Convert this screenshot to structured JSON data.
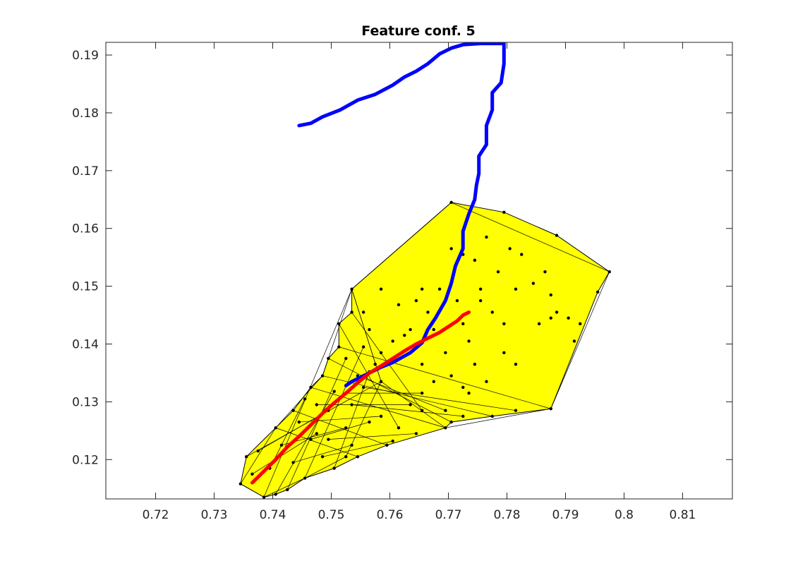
{
  "chart_data": {
    "type": "line",
    "title": "Feature conf. 5",
    "xlabel": "",
    "ylabel": "",
    "xlim": [
      0.7115,
      0.8185
    ],
    "ylim": [
      0.1132,
      0.1922
    ],
    "x_ticks": [
      0.72,
      0.73,
      0.74,
      0.75,
      0.76,
      0.77,
      0.78,
      0.79,
      0.8,
      0.81
    ],
    "x_tick_labels": [
      "0.72",
      "0.73",
      "0.74",
      "0.75",
      "0.76",
      "0.77",
      "0.78",
      "0.79",
      "0.8",
      "0.81"
    ],
    "y_ticks": [
      0.12,
      0.13,
      0.14,
      0.15,
      0.16,
      0.17,
      0.18,
      0.19
    ],
    "y_tick_labels": [
      "0.12",
      "0.13",
      "0.14",
      "0.15",
      "0.16",
      "0.17",
      "0.18",
      "0.19"
    ],
    "grid": false,
    "colors": {
      "background": "#ffffff",
      "region_fill": "#ffff00",
      "edges": "#000000",
      "points": "#000000",
      "blue_series": "#0000ff",
      "red_series": "#ff0000"
    },
    "region": {
      "fill": "#ffff00",
      "hull": [
        [
          0.7345,
          0.1158
        ],
        [
          0.7355,
          0.1205
        ],
        [
          0.7405,
          0.1255
        ],
        [
          0.7435,
          0.1285
        ],
        [
          0.7465,
          0.1325
        ],
        [
          0.7485,
          0.1345
        ],
        [
          0.7495,
          0.1375
        ],
        [
          0.7513,
          0.1395
        ],
        [
          0.7513,
          0.1435
        ],
        [
          0.7535,
          0.1455
        ],
        [
          0.7535,
          0.1495
        ],
        [
          0.7705,
          0.1645
        ],
        [
          0.7795,
          0.1628
        ],
        [
          0.7885,
          0.1588
        ],
        [
          0.7975,
          0.1525
        ],
        [
          0.7955,
          0.149
        ],
        [
          0.7875,
          0.1288
        ],
        [
          0.7775,
          0.1275
        ],
        [
          0.7705,
          0.1265
        ],
        [
          0.7695,
          0.1255
        ],
        [
          0.7595,
          0.1225
        ],
        [
          0.7545,
          0.1205
        ],
        [
          0.7505,
          0.1185
        ],
        [
          0.7455,
          0.1168
        ],
        [
          0.7425,
          0.1148
        ],
        [
          0.7405,
          0.114
        ],
        [
          0.7385,
          0.1135
        ]
      ],
      "inner_polygons": [
        [
          [
            0.7345,
            0.1158
          ],
          [
            0.7405,
            0.1255
          ],
          [
            0.7485,
            0.1345
          ],
          [
            0.7535,
            0.1495
          ],
          [
            0.7585,
            0.1335
          ],
          [
            0.7525,
            0.1205
          ],
          [
            0.7455,
            0.1168
          ],
          [
            0.7385,
            0.1135
          ]
        ],
        [
          [
            0.7535,
            0.1495
          ],
          [
            0.7705,
            0.1645
          ],
          [
            0.7975,
            0.1525
          ],
          [
            0.7875,
            0.1288
          ],
          [
            0.7695,
            0.1255
          ],
          [
            0.7585,
            0.1335
          ]
        ]
      ],
      "interior_edges": [
        [
          [
            0.7355,
            0.1205
          ],
          [
            0.7585,
            0.1335
          ]
        ],
        [
          [
            0.7385,
            0.1135
          ],
          [
            0.7535,
            0.1495
          ]
        ],
        [
          [
            0.7405,
            0.1255
          ],
          [
            0.7545,
            0.1205
          ]
        ],
        [
          [
            0.7435,
            0.1285
          ],
          [
            0.7595,
            0.1225
          ]
        ],
        [
          [
            0.7465,
            0.1325
          ],
          [
            0.7695,
            0.1255
          ]
        ],
        [
          [
            0.7485,
            0.1345
          ],
          [
            0.7775,
            0.1275
          ]
        ],
        [
          [
            0.7495,
            0.1375
          ],
          [
            0.7705,
            0.1265
          ]
        ],
        [
          [
            0.7513,
            0.1395
          ],
          [
            0.7875,
            0.1288
          ]
        ],
        [
          [
            0.7513,
            0.1435
          ],
          [
            0.7615,
            0.1255
          ]
        ],
        [
          [
            0.7535,
            0.1455
          ],
          [
            0.7655,
            0.1285
          ]
        ],
        [
          [
            0.7405,
            0.114
          ],
          [
            0.7505,
            0.1318
          ]
        ],
        [
          [
            0.7425,
            0.1148
          ],
          [
            0.7525,
            0.1375
          ]
        ],
        [
          [
            0.7455,
            0.1168
          ],
          [
            0.7555,
            0.1395
          ]
        ],
        [
          [
            0.7505,
            0.1185
          ],
          [
            0.7565,
            0.1352
          ]
        ],
        [
          [
            0.7365,
            0.1175
          ],
          [
            0.7475,
            0.1245
          ]
        ],
        [
          [
            0.7375,
            0.1215
          ],
          [
            0.7495,
            0.1285
          ]
        ],
        [
          [
            0.7395,
            0.1185
          ],
          [
            0.7455,
            0.1305
          ]
        ],
        [
          [
            0.7415,
            0.1225
          ],
          [
            0.7525,
            0.1255
          ]
        ],
        [
          [
            0.7445,
            0.1265
          ],
          [
            0.7585,
            0.1275
          ]
        ],
        [
          [
            0.7475,
            0.1295
          ],
          [
            0.7635,
            0.1295
          ]
        ],
        [
          [
            0.7495,
            0.1235
          ],
          [
            0.7645,
            0.1245
          ]
        ],
        [
          [
            0.7525,
            0.1315
          ],
          [
            0.7655,
            0.1315
          ]
        ],
        [
          [
            0.7545,
            0.1345
          ],
          [
            0.7695,
            0.1285
          ]
        ],
        [
          [
            0.7485,
            0.1205
          ],
          [
            0.7605,
            0.1232
          ]
        ],
        [
          [
            0.7435,
            0.1195
          ],
          [
            0.7535,
            0.1225
          ]
        ],
        [
          [
            0.7465,
            0.1235
          ],
          [
            0.7565,
            0.1265
          ]
        ],
        [
          [
            0.7535,
            0.1295
          ],
          [
            0.7725,
            0.1275
          ]
        ],
        [
          [
            0.7555,
            0.1325
          ],
          [
            0.7815,
            0.1285
          ]
        ]
      ]
    },
    "points": [
      [
        0.7345,
        0.1158
      ],
      [
        0.7355,
        0.1205
      ],
      [
        0.7365,
        0.1175
      ],
      [
        0.7375,
        0.1215
      ],
      [
        0.7385,
        0.1135
      ],
      [
        0.7395,
        0.1185
      ],
      [
        0.7405,
        0.1255
      ],
      [
        0.7405,
        0.114
      ],
      [
        0.7415,
        0.1225
      ],
      [
        0.7425,
        0.1148
      ],
      [
        0.7435,
        0.1285
      ],
      [
        0.7435,
        0.1195
      ],
      [
        0.7445,
        0.1265
      ],
      [
        0.7455,
        0.1168
      ],
      [
        0.7455,
        0.1305
      ],
      [
        0.7465,
        0.1325
      ],
      [
        0.7465,
        0.1235
      ],
      [
        0.7475,
        0.1245
      ],
      [
        0.7475,
        0.1295
      ],
      [
        0.7485,
        0.1345
      ],
      [
        0.7485,
        0.1205
      ],
      [
        0.7495,
        0.1375
      ],
      [
        0.7495,
        0.1285
      ],
      [
        0.7495,
        0.1235
      ],
      [
        0.7505,
        0.1185
      ],
      [
        0.7505,
        0.1318
      ],
      [
        0.7513,
        0.1395
      ],
      [
        0.7513,
        0.1435
      ],
      [
        0.7525,
        0.1205
      ],
      [
        0.7525,
        0.1255
      ],
      [
        0.7525,
        0.1315
      ],
      [
        0.7525,
        0.1375
      ],
      [
        0.7535,
        0.1455
      ],
      [
        0.7535,
        0.1495
      ],
      [
        0.7535,
        0.1225
      ],
      [
        0.7535,
        0.1295
      ],
      [
        0.7545,
        0.1205
      ],
      [
        0.7545,
        0.1345
      ],
      [
        0.7555,
        0.1395
      ],
      [
        0.7555,
        0.1325
      ],
      [
        0.7565,
        0.1265
      ],
      [
        0.7565,
        0.1352
      ],
      [
        0.7585,
        0.1335
      ],
      [
        0.7585,
        0.1275
      ],
      [
        0.7595,
        0.1225
      ],
      [
        0.7605,
        0.1232
      ],
      [
        0.7615,
        0.1255
      ],
      [
        0.7635,
        0.1295
      ],
      [
        0.7645,
        0.1245
      ],
      [
        0.7655,
        0.1285
      ],
      [
        0.7655,
        0.1315
      ],
      [
        0.7695,
        0.1255
      ],
      [
        0.7695,
        0.1285
      ],
      [
        0.7705,
        0.1265
      ],
      [
        0.7725,
        0.1275
      ],
      [
        0.7775,
        0.1275
      ],
      [
        0.7815,
        0.1285
      ],
      [
        0.7875,
        0.1288
      ],
      [
        0.7705,
        0.1645
      ],
      [
        0.7795,
        0.1628
      ],
      [
        0.7885,
        0.1588
      ],
      [
        0.7975,
        0.1525
      ],
      [
        0.7955,
        0.149
      ],
      [
        0.7585,
        0.1495
      ],
      [
        0.7615,
        0.1468
      ],
      [
        0.7625,
        0.1415
      ],
      [
        0.7645,
        0.1475
      ],
      [
        0.7655,
        0.1495
      ],
      [
        0.7665,
        0.1455
      ],
      [
        0.7675,
        0.1425
      ],
      [
        0.7685,
        0.1495
      ],
      [
        0.7695,
        0.1385
      ],
      [
        0.7705,
        0.1565
      ],
      [
        0.7715,
        0.1475
      ],
      [
        0.7725,
        0.1435
      ],
      [
        0.7735,
        0.1405
      ],
      [
        0.7745,
        0.1545
      ],
      [
        0.7755,
        0.1495
      ],
      [
        0.7765,
        0.1585
      ],
      [
        0.7775,
        0.1455
      ],
      [
        0.7785,
        0.1525
      ],
      [
        0.7795,
        0.1435
      ],
      [
        0.7805,
        0.1565
      ],
      [
        0.7815,
        0.1495
      ],
      [
        0.7825,
        0.1555
      ],
      [
        0.7845,
        0.1505
      ],
      [
        0.7855,
        0.1435
      ],
      [
        0.7865,
        0.1525
      ],
      [
        0.7875,
        0.1485
      ],
      [
        0.7885,
        0.1455
      ],
      [
        0.7905,
        0.1445
      ],
      [
        0.7915,
        0.1405
      ],
      [
        0.7925,
        0.1435
      ],
      [
        0.7705,
        0.1345
      ],
      [
        0.7725,
        0.1325
      ],
      [
        0.7745,
        0.1365
      ],
      [
        0.7765,
        0.1335
      ],
      [
        0.7795,
        0.1385
      ],
      [
        0.7815,
        0.1365
      ],
      [
        0.7675,
        0.1335
      ],
      [
        0.7655,
        0.1365
      ],
      [
        0.7605,
        0.1405
      ],
      [
        0.7635,
        0.1425
      ],
      [
        0.7585,
        0.1385
      ],
      [
        0.7555,
        0.1455
      ],
      [
        0.7565,
        0.1425
      ],
      [
        0.7575,
        0.1365
      ],
      [
        0.7735,
        0.1315
      ],
      [
        0.7755,
        0.1475
      ],
      [
        0.7875,
        0.1445
      ],
      [
        0.7725,
        0.1555
      ]
    ],
    "series": [
      {
        "color": "#0000ff",
        "x": [
          0.7445,
          0.7465,
          0.7485,
          0.7515,
          0.7545,
          0.7575,
          0.7605,
          0.7625,
          0.7645,
          0.7665,
          0.7685,
          0.7705,
          0.7725,
          0.7755,
          0.7795,
          0.7795,
          0.7795,
          0.779,
          0.7775,
          0.7775,
          0.7765,
          0.7765,
          0.7752,
          0.7752,
          0.7748,
          0.7745,
          0.7735,
          0.7725,
          0.7725,
          0.7712,
          0.7705,
          0.7695,
          0.7678,
          0.7665,
          0.7655,
          0.7635,
          0.7605,
          0.7585,
          0.7555,
          0.7535,
          0.7525
        ],
        "y": [
          0.1778,
          0.1782,
          0.1793,
          0.1805,
          0.1822,
          0.1832,
          0.1848,
          0.1862,
          0.1872,
          0.1885,
          0.1902,
          0.1912,
          0.1918,
          0.192,
          0.192,
          0.1905,
          0.1885,
          0.1852,
          0.1835,
          0.1805,
          0.1778,
          0.1745,
          0.1725,
          0.1695,
          0.1675,
          0.165,
          0.1625,
          0.1595,
          0.1565,
          0.1535,
          0.1505,
          0.1475,
          0.1445,
          0.1425,
          0.1402,
          0.1385,
          0.1368,
          0.136,
          0.1345,
          0.1335,
          0.1328
        ]
      },
      {
        "color": "#ff0000",
        "x": [
          0.7365,
          0.7385,
          0.7405,
          0.7425,
          0.7445,
          0.7465,
          0.7485,
          0.7505,
          0.7525,
          0.7545,
          0.7565,
          0.7585,
          0.7605,
          0.7625,
          0.7645,
          0.7665,
          0.7685,
          0.77,
          0.7715,
          0.7725,
          0.7735
        ],
        "y": [
          0.116,
          0.118,
          0.12,
          0.1222,
          0.124,
          0.126,
          0.128,
          0.1298,
          0.1315,
          0.1333,
          0.135,
          0.1362,
          0.1375,
          0.1388,
          0.14,
          0.141,
          0.142,
          0.143,
          0.144,
          0.145,
          0.1455
        ]
      }
    ]
  }
}
